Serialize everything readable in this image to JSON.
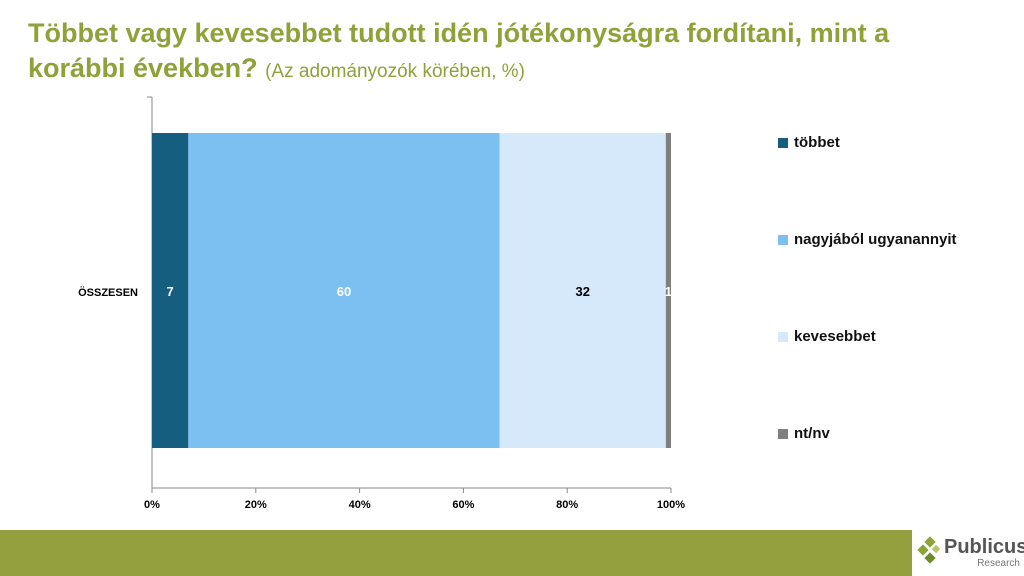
{
  "title": {
    "main": "Többet vagy kevesebbet tudott idén jótékonyságra fordítani, mint a korábbi években?",
    "sub": "(Az adományozók körében, %)"
  },
  "chart_data": {
    "type": "bar",
    "orientation": "horizontal",
    "stacked": true,
    "categories": [
      "ÖSSZESEN"
    ],
    "series": [
      {
        "name": "többet",
        "values": [
          7
        ],
        "color": "#165E80",
        "label_color": "#ffffff"
      },
      {
        "name": "nagyjából ugyanannyit",
        "values": [
          60
        ],
        "color": "#7CC0F2",
        "label_color": "#ffffff"
      },
      {
        "name": "kevesebbet",
        "values": [
          32
        ],
        "color": "#D5E9FA",
        "label_color": "#000000"
      },
      {
        "name": "nt/nv",
        "values": [
          1
        ],
        "color": "#7F7F7F",
        "label_color": "#ffffff"
      }
    ],
    "xticks": [
      "0%",
      "20%",
      "40%",
      "60%",
      "80%",
      "100%"
    ],
    "xlim": [
      0,
      100
    ],
    "legend": "right"
  },
  "logo": {
    "name": "Publicus",
    "sub": "Research"
  }
}
